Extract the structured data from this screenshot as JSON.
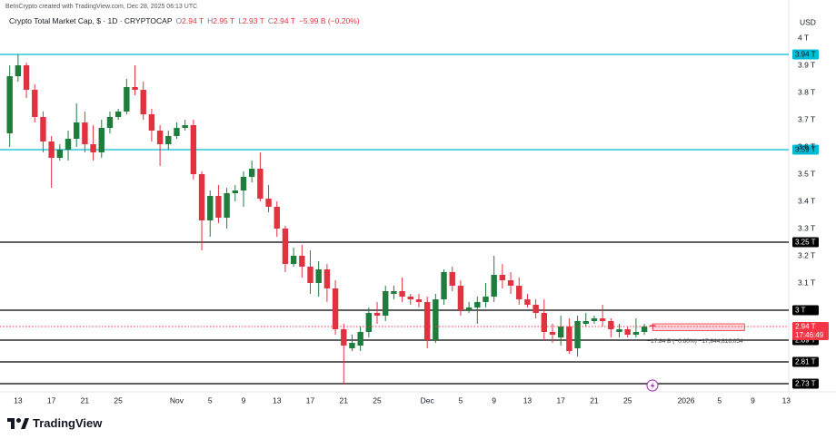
{
  "header": {
    "watermark": "BeInCrypto created with TradingView.com, Dec 28, 2025 06:13 UTC",
    "symbol": "Crypto Total Market Cap, $ · 1D · CRYPTOCAP",
    "ohlc": [
      {
        "key": "O",
        "value": "2.94 T"
      },
      {
        "key": "H",
        "value": "2.95 T"
      },
      {
        "key": "L",
        "value": "2.93 T"
      },
      {
        "key": "C",
        "value": "2.94 T"
      }
    ],
    "change": "−5.99 B (−0.20%)",
    "currency": "USD"
  },
  "footer": {
    "brand": "TradingView"
  },
  "chart_data": {
    "type": "candlestick",
    "up_color": "#1e7d3c",
    "down_color": "#e0323f",
    "xlim": [
      "2025-10-11",
      "2026-01-14"
    ],
    "ylim": [
      2.7,
      4.14
    ],
    "x": [
      "2025-10-12",
      "2025-10-13",
      "2025-10-14",
      "2025-10-15",
      "2025-10-16",
      "2025-10-17",
      "2025-10-18",
      "2025-10-19",
      "2025-10-20",
      "2025-10-21",
      "2025-10-22",
      "2025-10-23",
      "2025-10-24",
      "2025-10-25",
      "2025-10-26",
      "2025-10-27",
      "2025-10-28",
      "2025-10-29",
      "2025-10-30",
      "2025-10-31",
      "2025-11-01",
      "2025-11-02",
      "2025-11-03",
      "2025-11-04",
      "2025-11-05",
      "2025-11-06",
      "2025-11-07",
      "2025-11-08",
      "2025-11-09",
      "2025-11-10",
      "2025-11-11",
      "2025-11-12",
      "2025-11-13",
      "2025-11-14",
      "2025-11-15",
      "2025-11-16",
      "2025-11-17",
      "2025-11-18",
      "2025-11-19",
      "2025-11-20",
      "2025-11-21",
      "2025-11-22",
      "2025-11-23",
      "2025-11-24",
      "2025-11-25",
      "2025-11-26",
      "2025-11-27",
      "2025-11-28",
      "2025-11-29",
      "2025-11-30",
      "2025-12-01",
      "2025-12-02",
      "2025-12-03",
      "2025-12-04",
      "2025-12-05",
      "2025-12-06",
      "2025-12-07",
      "2025-12-08",
      "2025-12-09",
      "2025-12-10",
      "2025-12-11",
      "2025-12-12",
      "2025-12-13",
      "2025-12-14",
      "2025-12-15",
      "2025-12-16",
      "2025-12-17",
      "2025-12-18",
      "2025-12-19",
      "2025-12-20",
      "2025-12-21",
      "2025-12-22",
      "2025-12-23",
      "2025-12-24",
      "2025-12-25",
      "2025-12-26",
      "2025-12-27",
      "2025-12-28"
    ],
    "open": [
      3.65,
      3.86,
      3.9,
      3.81,
      3.71,
      3.62,
      3.56,
      3.59,
      3.63,
      3.69,
      3.61,
      3.58,
      3.67,
      3.71,
      3.73,
      3.82,
      3.81,
      3.72,
      3.66,
      3.61,
      3.64,
      3.67,
      3.68,
      3.5,
      3.33,
      3.42,
      3.34,
      3.43,
      3.44,
      3.49,
      3.52,
      3.41,
      3.38,
      3.3,
      3.17,
      3.2,
      3.16,
      3.1,
      3.15,
      3.08,
      2.93,
      2.86,
      2.87,
      2.92,
      2.99,
      2.98,
      3.06,
      3.07,
      3.05,
      3.04,
      3.03,
      2.89,
      3.04,
      3.14,
      3.09,
      3.0,
      3.01,
      3.03,
      3.05,
      3.13,
      3.11,
      3.09,
      3.04,
      3.02,
      2.99,
      2.92,
      2.9,
      2.94,
      2.86,
      2.95,
      2.96,
      2.97,
      2.96,
      2.92,
      2.93,
      2.91,
      2.92,
      2.945
    ],
    "high": [
      3.9,
      3.94,
      3.91,
      3.83,
      3.73,
      3.64,
      3.61,
      3.66,
      3.76,
      3.73,
      3.68,
      3.7,
      3.73,
      3.74,
      3.85,
      3.9,
      3.84,
      3.74,
      3.68,
      3.66,
      3.69,
      3.7,
      3.7,
      3.51,
      3.44,
      3.46,
      3.45,
      3.46,
      3.51,
      3.55,
      3.58,
      3.46,
      3.4,
      3.31,
      3.23,
      3.24,
      3.22,
      3.18,
      3.17,
      3.11,
      2.95,
      2.91,
      2.94,
      3.01,
      3.03,
      3.09,
      3.09,
      3.12,
      3.06,
      3.06,
      3.05,
      3.06,
      3.15,
      3.16,
      3.11,
      3.03,
      3.05,
      3.1,
      3.2,
      3.17,
      3.14,
      3.12,
      3.06,
      3.04,
      3.04,
      2.95,
      2.98,
      2.97,
      2.98,
      2.99,
      2.98,
      3.02,
      2.97,
      2.95,
      2.94,
      2.97,
      2.95,
      2.95
    ],
    "low": [
      3.6,
      3.84,
      3.78,
      3.69,
      3.58,
      3.45,
      3.55,
      3.55,
      3.6,
      3.58,
      3.55,
      3.56,
      3.65,
      3.7,
      3.72,
      3.79,
      3.7,
      3.62,
      3.53,
      3.59,
      3.63,
      3.66,
      3.48,
      3.22,
      3.27,
      3.32,
      3.3,
      3.4,
      3.38,
      3.47,
      3.4,
      3.36,
      3.27,
      3.14,
      3.16,
      3.12,
      3.06,
      3.05,
      3.03,
      2.91,
      2.73,
      2.85,
      2.85,
      2.9,
      2.95,
      2.96,
      3.04,
      3.03,
      3.02,
      3.01,
      2.86,
      2.88,
      3.02,
      3.07,
      2.98,
      2.99,
      2.95,
      3.01,
      3.03,
      3.08,
      3.06,
      3.02,
      3.01,
      2.97,
      2.89,
      2.88,
      2.87,
      2.84,
      2.83,
      2.94,
      2.95,
      2.94,
      2.9,
      2.9,
      2.9,
      2.9,
      2.91,
      2.93
    ],
    "close": [
      3.86,
      3.9,
      3.81,
      3.71,
      3.62,
      3.56,
      3.59,
      3.63,
      3.69,
      3.61,
      3.58,
      3.67,
      3.71,
      3.73,
      3.82,
      3.81,
      3.72,
      3.66,
      3.61,
      3.64,
      3.67,
      3.68,
      3.5,
      3.33,
      3.42,
      3.34,
      3.43,
      3.44,
      3.49,
      3.52,
      3.41,
      3.38,
      3.3,
      3.17,
      3.2,
      3.16,
      3.1,
      3.15,
      3.08,
      2.93,
      2.87,
      2.88,
      2.92,
      2.99,
      2.98,
      3.07,
      3.07,
      3.05,
      3.04,
      3.03,
      2.89,
      3.04,
      3.14,
      3.09,
      3.0,
      3.01,
      3.03,
      3.05,
      3.13,
      3.11,
      3.09,
      3.04,
      3.02,
      2.99,
      2.92,
      2.91,
      2.94,
      2.85,
      2.96,
      2.96,
      2.97,
      2.96,
      2.93,
      2.93,
      2.91,
      2.92,
      2.94,
      2.94
    ],
    "yticks": [
      {
        "value": 4,
        "label": "4 T"
      },
      {
        "value": 3.9,
        "label": "3.9 T"
      },
      {
        "value": 3.8,
        "label": "3.8 T"
      },
      {
        "value": 3.7,
        "label": "3.7 T"
      },
      {
        "value": 3.6,
        "label": "3.6 T"
      },
      {
        "value": 3.5,
        "label": "3.5 T"
      },
      {
        "value": 3.4,
        "label": "3.4 T"
      },
      {
        "value": 3.3,
        "label": "3.3 T"
      },
      {
        "value": 3.2,
        "label": "3.2 T"
      },
      {
        "value": 3.1,
        "label": "3.1 T"
      }
    ],
    "xticks": [
      {
        "value": "2025-10-13",
        "label": "13"
      },
      {
        "value": "2025-10-17",
        "label": "17"
      },
      {
        "value": "2025-10-21",
        "label": "21"
      },
      {
        "value": "2025-10-25",
        "label": "25"
      },
      {
        "value": "2025-11-01",
        "label": "Nov"
      },
      {
        "value": "2025-11-05",
        "label": "5"
      },
      {
        "value": "2025-11-09",
        "label": "9"
      },
      {
        "value": "2025-11-13",
        "label": "13"
      },
      {
        "value": "2025-11-17",
        "label": "17"
      },
      {
        "value": "2025-11-21",
        "label": "21"
      },
      {
        "value": "2025-11-25",
        "label": "25"
      },
      {
        "value": "2025-12-01",
        "label": "Dec"
      },
      {
        "value": "2025-12-05",
        "label": "5"
      },
      {
        "value": "2025-12-09",
        "label": "9"
      },
      {
        "value": "2025-12-13",
        "label": "13"
      },
      {
        "value": "2025-12-17",
        "label": "17"
      },
      {
        "value": "2025-12-21",
        "label": "21"
      },
      {
        "value": "2025-12-25",
        "label": "25"
      },
      {
        "value": "2026-01-01",
        "label": "2026"
      },
      {
        "value": "2026-01-05",
        "label": "5"
      },
      {
        "value": "2026-01-09",
        "label": "9"
      },
      {
        "value": "2026-01-13",
        "label": "13"
      }
    ],
    "levels": [
      {
        "value": 3.94,
        "label": "3.94 T",
        "color": "#00bcd4",
        "text_color": "#131722"
      },
      {
        "value": 3.59,
        "label": "3.59 T",
        "color": "#00bcd4",
        "text_color": "#131722"
      },
      {
        "value": 3.25,
        "label": "3.25 T",
        "color": "#000000",
        "text_color": "#ffffff"
      },
      {
        "value": 3,
        "label": "3 T",
        "color": "#000000",
        "text_color": "#ffffff"
      },
      {
        "value": 2.89,
        "label": "2.89 T",
        "color": "#000000",
        "text_color": "#ffffff"
      },
      {
        "value": 2.81,
        "label": "2.81 T",
        "color": "#000000",
        "text_color": "#ffffff"
      },
      {
        "value": 2.73,
        "label": "2.73 T",
        "color": "#000000",
        "text_color": "#ffffff"
      }
    ],
    "last_price": {
      "value": 2.94,
      "label": "2.94 T",
      "countdown": "17:46:49",
      "color": "#f23645"
    },
    "range_box": {
      "x": [
        "2025-12-28",
        "2026-01-08"
      ],
      "y": [
        2.95,
        2.925
      ],
      "color": "#f23645",
      "label": "−17.84 B (−0.60%) −17,844,816,054"
    }
  }
}
